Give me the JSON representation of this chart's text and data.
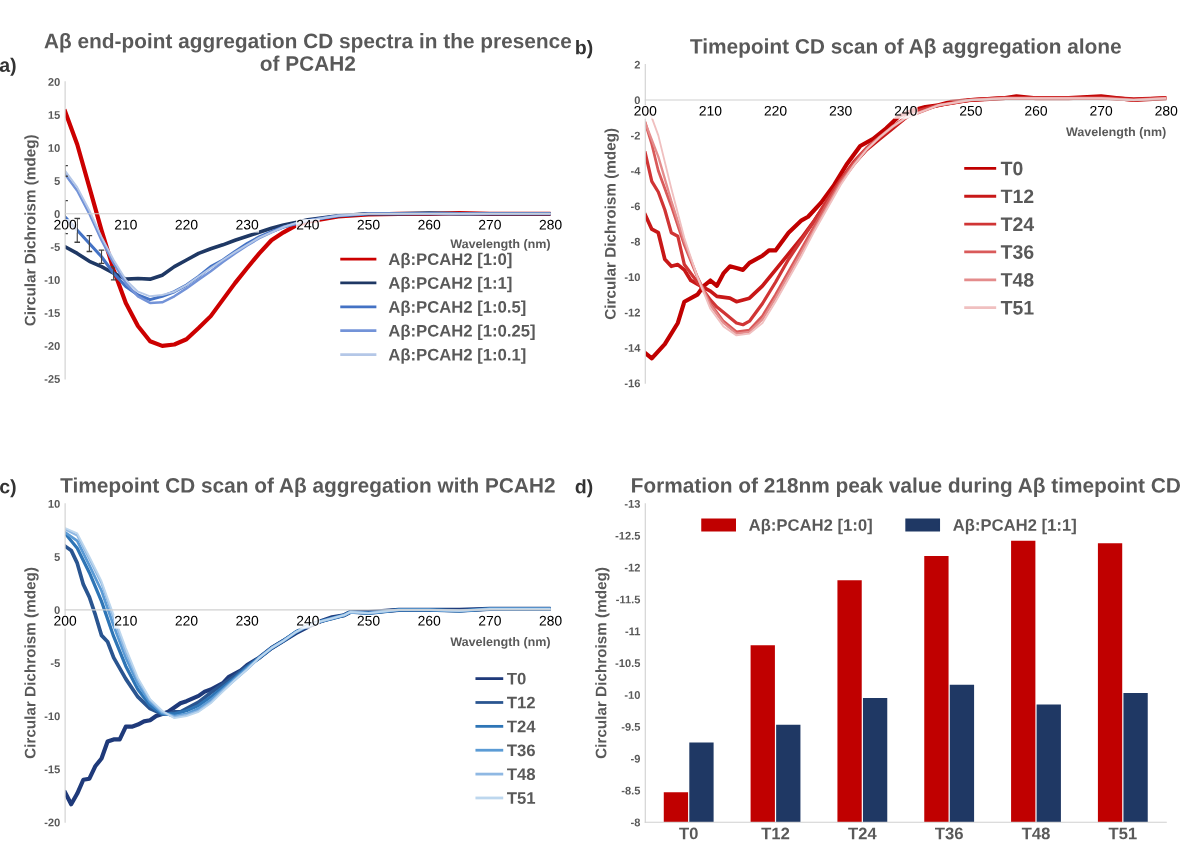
{
  "chart_data": [
    {
      "type": "line",
      "title": "Aβ end-point aggregation CD spectra in the presence of PCAH2",
      "xlabel": "Wavelength (nm)",
      "ylabel": "Circular Dichroism (mdeg)",
      "annotations": [
        "a)"
      ],
      "xlim": [
        200,
        280
      ],
      "xticks": [
        200,
        210,
        220,
        230,
        240,
        250,
        260,
        270,
        280
      ],
      "ylim": [
        -25,
        20
      ],
      "yticks": [
        -25,
        -20,
        -15,
        -10,
        -5,
        0,
        5,
        10,
        15,
        20
      ],
      "legend": "bottom right",
      "grid": false,
      "x": [
        200,
        202,
        204,
        206,
        208,
        210,
        212,
        214,
        216,
        218,
        220,
        222,
        224,
        226,
        228,
        230,
        232,
        234,
        236,
        238,
        240,
        245,
        250,
        255,
        260,
        265,
        270,
        275,
        280
      ],
      "series": [
        {
          "name": "Aβ:PCAH2 [1:0]",
          "color": "#cc0000",
          "values": [
            15.5,
            10.5,
            4,
            -2.5,
            -8.5,
            -13.5,
            -17,
            -19.3,
            -20,
            -19.8,
            -19,
            -17.3,
            -15.5,
            -13,
            -10.5,
            -8.2,
            -6,
            -4,
            -2.8,
            -1.8,
            -1.2,
            -0.4,
            -0.1,
            0,
            0,
            0.1,
            0,
            0,
            0
          ]
        },
        {
          "name": "Aβ:PCAH2 [1:1]",
          "color": "#1f3864",
          "values": [
            -5,
            -6,
            -7.2,
            -8,
            -9,
            -9.9,
            -9.8,
            -9.9,
            -9.3,
            -8,
            -7,
            -6,
            -5.3,
            -4.7,
            -4,
            -3.4,
            -2.8,
            -2.2,
            -1.7,
            -1.3,
            -0.9,
            -0.3,
            0,
            0,
            0.1,
            0,
            0,
            0,
            0
          ]
        },
        {
          "name": "Aβ:PCAH2 [1:0.5]",
          "color": "#4472c4",
          "values": [
            -0.5,
            -2.5,
            -4.5,
            -6.5,
            -9,
            -11,
            -12.3,
            -13,
            -12.5,
            -11.8,
            -10.8,
            -9.5,
            -8,
            -7,
            -5.7,
            -4.5,
            -3.5,
            -2.7,
            -2,
            -1.5,
            -1,
            -0.3,
            0,
            0,
            0,
            0,
            0,
            0,
            0
          ],
          "errors": [
            2.5,
            1.8,
            1.2,
            1,
            1,
            null,
            null,
            null,
            null,
            null,
            null,
            null,
            null,
            null,
            null,
            null,
            null,
            null,
            null,
            null,
            null,
            null,
            null,
            null,
            null,
            null,
            null,
            null,
            null
          ]
        },
        {
          "name": "Aβ:PCAH2 [1:0.25]",
          "color": "#7393d8",
          "values": [
            6,
            3.5,
            0,
            -4,
            -7.5,
            -10.5,
            -12.5,
            -13.5,
            -13.4,
            -12.5,
            -11.3,
            -10,
            -8.7,
            -7.3,
            -6,
            -4.8,
            -3.7,
            -2.8,
            -2,
            -1.5,
            -1,
            -0.3,
            0,
            0,
            0,
            0,
            0,
            0,
            0
          ]
        },
        {
          "name": "Aβ:PCAH2 [1:0.1]",
          "color": "#b4c7e7",
          "values": [
            6.5,
            4,
            0.5,
            -3.5,
            -7,
            -10,
            -11.8,
            -12.5,
            -12.3,
            -11.8,
            -10.8,
            -9.5,
            -8.2,
            -7,
            -5.8,
            -4.7,
            -3.6,
            -2.8,
            -2,
            -1.4,
            -1,
            -0.3,
            0,
            0,
            0,
            0,
            0,
            0,
            0
          ],
          "errors": [
            0.8,
            null,
            null,
            null,
            null,
            null,
            null,
            null,
            null,
            null,
            null,
            null,
            null,
            null,
            null,
            null,
            null,
            null,
            null,
            null,
            null,
            null,
            null,
            null,
            null,
            null,
            null,
            null,
            null
          ]
        }
      ]
    },
    {
      "type": "line",
      "title": "Timepoint CD scan of Aβ aggregation alone",
      "xlabel": "Wavelength (nm)",
      "ylabel": "Circular Dichroism (mdeg)",
      "annotations": [
        "b)"
      ],
      "xlim": [
        200,
        280
      ],
      "xticks": [
        200,
        210,
        220,
        230,
        240,
        250,
        260,
        270,
        280
      ],
      "ylim": [
        -16,
        2
      ],
      "yticks": [
        -16,
        -14,
        -12,
        -10,
        -8,
        -6,
        -4,
        -2,
        0,
        2
      ],
      "legend": "right",
      "grid": false,
      "series": [
        {
          "name": "T0",
          "color": "#c00000",
          "x": [
            200,
            201,
            203,
            205,
            206,
            208,
            209,
            210,
            211,
            212,
            213,
            214,
            215,
            216,
            218,
            219,
            220,
            222,
            224,
            225,
            227,
            229,
            231,
            233,
            235,
            237,
            239,
            241,
            243,
            245,
            247,
            250,
            255,
            257,
            260,
            265,
            270,
            275,
            280
          ],
          "values": [
            -14.3,
            -14.6,
            -13.8,
            -12.6,
            -11.4,
            -11,
            -10.5,
            -10.2,
            -10.5,
            -9.8,
            -9.4,
            -9.5,
            -9.6,
            -9.2,
            -8.8,
            -8.5,
            -8.5,
            -7.5,
            -6.8,
            -6.6,
            -5.8,
            -4.8,
            -3.6,
            -2.6,
            -2.2,
            -1.6,
            -0.9,
            -0.6,
            -0.4,
            -0.3,
            -0.1,
            0,
            0.1,
            0.2,
            0.1,
            0.1,
            0.2,
            0,
            0.1
          ]
        },
        {
          "name": "T12",
          "color": "#c81818",
          "x": [
            200,
            201,
            202,
            203,
            204,
            205,
            206,
            207,
            208,
            210,
            211,
            213,
            214,
            216,
            218,
            220,
            222,
            224,
            226,
            228,
            230,
            232,
            234,
            236,
            238,
            240,
            242,
            245,
            250,
            255,
            260,
            265,
            270,
            275,
            280
          ],
          "values": [
            -6.5,
            -7.3,
            -7.5,
            -9,
            -9.4,
            -9.3,
            -9.6,
            -10.2,
            -10.4,
            -10.8,
            -11.1,
            -11.2,
            -11.4,
            -11.2,
            -10.5,
            -9.6,
            -8.7,
            -7.8,
            -6.8,
            -5.7,
            -4.6,
            -3.6,
            -2.8,
            -2.2,
            -1.6,
            -1,
            -0.6,
            -0.3,
            0,
            0.1,
            0.1,
            0.1,
            0.15,
            0.05,
            0.1
          ]
        },
        {
          "name": "T24",
          "color": "#d03535",
          "x": [
            200,
            201,
            202,
            203,
            204,
            205,
            206,
            208,
            210,
            211,
            212,
            214,
            215,
            216,
            218,
            220,
            222,
            224,
            226,
            228,
            230,
            232,
            234,
            236,
            238,
            240,
            242,
            245,
            250,
            255,
            260,
            265,
            270,
            275,
            280
          ],
          "values": [
            -3,
            -4.6,
            -5.2,
            -6.2,
            -7.5,
            -7.7,
            -9.3,
            -10.3,
            -11.3,
            -11.7,
            -12,
            -12.6,
            -12.7,
            -12.5,
            -11.5,
            -10.3,
            -9,
            -7.9,
            -6.8,
            -5.6,
            -4.5,
            -3.5,
            -2.7,
            -2.1,
            -1.5,
            -1,
            -0.6,
            -0.3,
            0,
            0.1,
            0.1,
            0.1,
            0.1,
            0,
            0.1
          ]
        },
        {
          "name": "T36",
          "color": "#d95a5a",
          "x": [
            200,
            201,
            202,
            204,
            206,
            208,
            210,
            212,
            214,
            216,
            218,
            220,
            222,
            224,
            226,
            228,
            230,
            232,
            234,
            236,
            238,
            240,
            245,
            250,
            255,
            260,
            265,
            270,
            275,
            280
          ],
          "values": [
            -1.3,
            -2.5,
            -4,
            -6,
            -8.2,
            -10,
            -11.5,
            -12.5,
            -13.1,
            -13,
            -12.2,
            -11,
            -9.7,
            -8.4,
            -7.1,
            -5.8,
            -4.6,
            -3.6,
            -2.7,
            -2.1,
            -1.5,
            -1,
            -0.3,
            0,
            0.1,
            0.1,
            0.1,
            0.1,
            0,
            0.1
          ]
        },
        {
          "name": "T48",
          "color": "#e48c8c",
          "x": [
            200,
            202,
            204,
            206,
            208,
            210,
            212,
            214,
            216,
            218,
            220,
            222,
            224,
            226,
            228,
            230,
            232,
            234,
            236,
            238,
            240,
            245,
            250,
            255,
            260,
            265,
            270,
            275,
            280
          ],
          "values": [
            -1.3,
            -3.2,
            -5.7,
            -8,
            -10,
            -11.6,
            -12.6,
            -13.2,
            -13.1,
            -12.4,
            -11.2,
            -9.9,
            -8.6,
            -7.3,
            -6,
            -4.7,
            -3.7,
            -2.8,
            -2.1,
            -1.5,
            -1,
            -0.3,
            0,
            0.1,
            0.1,
            0.1,
            0.1,
            0,
            0.1
          ]
        },
        {
          "name": "T51",
          "color": "#f0c0c0",
          "x": [
            200,
            201,
            202,
            204,
            206,
            208,
            210,
            212,
            214,
            216,
            218,
            220,
            222,
            224,
            226,
            228,
            230,
            232,
            234,
            236,
            238,
            240,
            245,
            250,
            255,
            260,
            265,
            270,
            275,
            280
          ],
          "values": [
            -0.3,
            -1,
            -2,
            -5,
            -7.8,
            -10,
            -11.8,
            -12.8,
            -13.3,
            -13.2,
            -12.6,
            -11.4,
            -10.1,
            -8.8,
            -7.4,
            -6.1,
            -4.8,
            -3.7,
            -2.8,
            -2.1,
            -1.5,
            -1,
            -0.3,
            0,
            0.1,
            0.1,
            0.1,
            0.1,
            0,
            0.1
          ]
        }
      ]
    },
    {
      "type": "line",
      "title": "Timepoint CD scan of Aβ aggregation with PCAH2",
      "xlabel": "Wavelength (nm)",
      "ylabel": "Circular Dichroism (mdeg)",
      "annotations": [
        "c)"
      ],
      "xlim": [
        200,
        280
      ],
      "xticks": [
        200,
        210,
        220,
        230,
        240,
        250,
        260,
        270,
        280
      ],
      "ylim": [
        -20,
        10
      ],
      "yticks": [
        -20,
        -15,
        -10,
        -5,
        0,
        5,
        10
      ],
      "legend": "bottom right",
      "grid": false,
      "series": [
        {
          "name": "T0",
          "color": "#1f3a7a",
          "x": [
            200,
            201,
            202,
            203,
            204,
            205,
            206,
            207,
            208,
            209,
            210,
            211,
            212,
            213,
            214,
            215,
            216,
            217,
            218,
            219,
            220,
            222,
            223,
            224,
            226,
            227,
            228,
            229,
            230,
            232,
            234,
            236,
            238,
            240,
            242,
            244,
            246,
            247,
            250,
            255,
            260,
            265,
            270,
            275,
            280
          ],
          "values": [
            -17.2,
            -18.3,
            -17.3,
            -16,
            -15.9,
            -14.7,
            -14,
            -12.4,
            -12.2,
            -12.2,
            -11,
            -11,
            -10.8,
            -10.5,
            -10.4,
            -10,
            -9.8,
            -9.6,
            -9.2,
            -8.8,
            -8.6,
            -8.1,
            -7.7,
            -7.5,
            -6.9,
            -6.3,
            -6,
            -5.7,
            -5.2,
            -4.5,
            -3.6,
            -2.9,
            -2.2,
            -1.6,
            -1.1,
            -0.7,
            -0.5,
            -0.2,
            -0.2,
            0,
            0,
            0,
            0.1,
            0.1,
            0.1
          ]
        },
        {
          "name": "T12",
          "color": "#2a5590",
          "x": [
            200,
            201,
            202,
            203,
            204,
            205,
            206,
            207,
            208,
            210,
            212,
            214,
            216,
            217,
            218,
            219,
            220,
            222,
            224,
            226,
            228,
            230,
            232,
            234,
            236,
            238,
            240,
            242,
            244,
            246,
            247,
            250,
            255,
            260,
            265,
            270,
            275,
            280
          ],
          "values": [
            6,
            5.6,
            4.4,
            2.4,
            1.2,
            -0.5,
            -2.4,
            -3,
            -4.5,
            -6.5,
            -8.2,
            -9.3,
            -9.8,
            -9.8,
            -9.6,
            -9.6,
            -9.3,
            -8.7,
            -7.8,
            -7,
            -6.2,
            -5.3,
            -4.5,
            -3.6,
            -2.9,
            -2.1,
            -1.5,
            -1.1,
            -0.8,
            -0.5,
            -0.2,
            -0.3,
            0,
            0,
            -0.1,
            0.1,
            0.1,
            0.1
          ]
        },
        {
          "name": "T24",
          "color": "#2e75b6",
          "x": [
            200,
            202,
            204,
            206,
            208,
            210,
            212,
            214,
            216,
            218,
            220,
            222,
            224,
            226,
            228,
            230,
            232,
            234,
            236,
            238,
            240,
            242,
            244,
            246,
            247,
            250,
            255,
            260,
            265,
            270,
            275,
            280
          ],
          "values": [
            7.2,
            5.8,
            3.5,
            0.8,
            -2.5,
            -5.3,
            -7.5,
            -9,
            -9.8,
            -9.8,
            -9.5,
            -9,
            -8.2,
            -7.3,
            -6.4,
            -5.4,
            -4.5,
            -3.6,
            -2.9,
            -2.1,
            -1.5,
            -1.1,
            -0.8,
            -0.5,
            -0.2,
            -0.3,
            0,
            0,
            -0.1,
            0.1,
            0.1,
            0.1
          ]
        },
        {
          "name": "T36",
          "color": "#5b9bd5",
          "x": [
            200,
            202,
            204,
            206,
            208,
            210,
            212,
            214,
            216,
            218,
            220,
            222,
            224,
            226,
            228,
            230,
            232,
            234,
            236,
            238,
            240,
            242,
            244,
            246,
            247,
            250,
            255,
            260,
            265,
            270,
            275,
            280
          ],
          "values": [
            7.3,
            6.5,
            4.2,
            1.8,
            -1.5,
            -4.5,
            -7,
            -8.7,
            -9.7,
            -10,
            -9.8,
            -9.3,
            -8.5,
            -7.5,
            -6.5,
            -5.5,
            -4.5,
            -3.6,
            -2.9,
            -2.1,
            -1.5,
            -1.1,
            -0.8,
            -0.5,
            -0.2,
            -0.3,
            0,
            0,
            -0.1,
            0.1,
            0.1,
            0.1
          ]
        },
        {
          "name": "T48",
          "color": "#8fb8e3",
          "x": [
            200,
            202,
            204,
            206,
            208,
            210,
            212,
            214,
            216,
            218,
            220,
            222,
            224,
            226,
            228,
            230,
            232,
            234,
            236,
            238,
            240,
            242,
            244,
            246,
            247,
            250,
            255,
            260,
            265,
            270,
            275,
            280
          ],
          "values": [
            7.6,
            7,
            4.8,
            2.5,
            -0.8,
            -4,
            -6.6,
            -8.5,
            -9.6,
            -10.1,
            -9.9,
            -9.5,
            -8.7,
            -7.6,
            -6.6,
            -5.6,
            -4.5,
            -3.6,
            -2.9,
            -2.1,
            -1.5,
            -1.1,
            -0.8,
            -0.5,
            -0.2,
            -0.3,
            0,
            0,
            -0.1,
            0.1,
            0.1,
            0.1
          ]
        },
        {
          "name": "T51",
          "color": "#bdd7ee",
          "x": [
            200,
            202,
            204,
            206,
            208,
            210,
            212,
            214,
            216,
            218,
            220,
            222,
            224,
            226,
            228,
            230,
            232,
            234,
            236,
            238,
            240,
            242,
            244,
            246,
            247,
            250,
            255,
            260,
            265,
            270,
            275,
            280
          ],
          "values": [
            7.7,
            7.2,
            5,
            2.7,
            -0.5,
            -3.6,
            -6.4,
            -8.4,
            -9.5,
            -10.2,
            -10,
            -9.6,
            -8.8,
            -7.7,
            -6.6,
            -5.6,
            -4.5,
            -3.6,
            -2.9,
            -2.1,
            -1.5,
            -1.1,
            -0.8,
            -0.5,
            -0.2,
            -0.3,
            0,
            0,
            -0.1,
            0.1,
            0.1,
            0.1
          ]
        }
      ]
    },
    {
      "type": "bar",
      "title": "Formation of 218nm peak value during Aβ timepoint CD",
      "ylabel": "Circular Dichroism (mdeg)",
      "annotations": [
        "d)"
      ],
      "categories": [
        "T0",
        "T12",
        "T24",
        "T36",
        "T48",
        "T51"
      ],
      "ylim": [
        -8,
        -13
      ],
      "yticks": [
        -8,
        -8.5,
        -9,
        -9.5,
        -10,
        -10.5,
        -11,
        -11.5,
        -12,
        -12.5,
        -13
      ],
      "legend": "top",
      "grid": false,
      "series": [
        {
          "name": "Aβ:PCAH2 [1:0]",
          "color": "#c00000",
          "values": [
            -8.47,
            -10.78,
            -11.8,
            -12.18,
            -12.42,
            -12.38
          ]
        },
        {
          "name": "Aβ:PCAH2 [1:1]",
          "color": "#1f3864",
          "values": [
            -9.25,
            -9.53,
            -9.95,
            -10.16,
            -9.85,
            -10.03
          ]
        }
      ]
    }
  ]
}
